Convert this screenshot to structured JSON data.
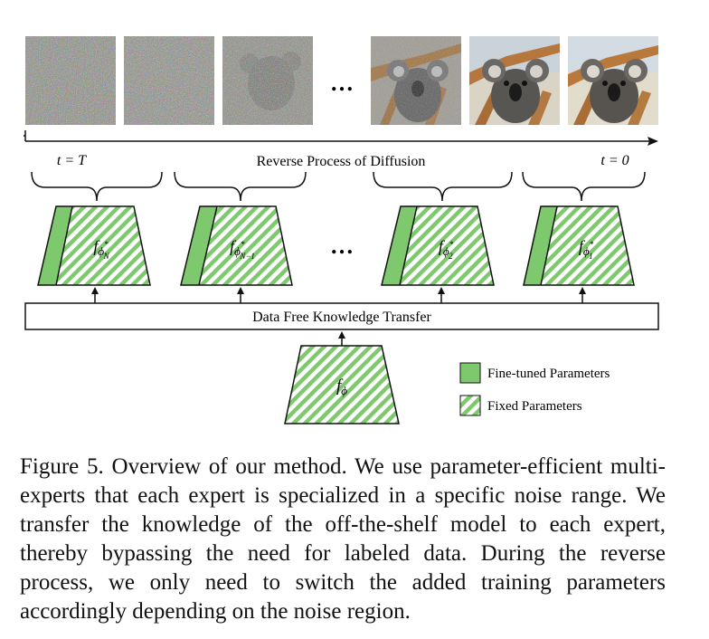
{
  "timeline": {
    "start_label": "t = T",
    "end_label": "t = 0",
    "title": "Reverse Process of Diffusion"
  },
  "ellipsis": "…",
  "images": [
    {
      "stage": "pure-noise"
    },
    {
      "stage": "noise"
    },
    {
      "stage": "noisy-koala"
    },
    {
      "stage": "less-noisy-koala"
    },
    {
      "stage": "nearly-clean-koala"
    },
    {
      "stage": "clean-koala"
    }
  ],
  "experts": [
    {
      "label_main": "f",
      "label_sub": "ϕ",
      "label_sup": "*",
      "label_subsub": "N"
    },
    {
      "label_main": "f",
      "label_sub": "ϕ",
      "label_sup": "*",
      "label_subsub": "N−1"
    },
    {
      "label_main": "f",
      "label_sub": "ϕ",
      "label_sup": "*",
      "label_subsub": "2"
    },
    {
      "label_main": "f",
      "label_sub": "ϕ",
      "label_sup": "*",
      "label_subsub": "1"
    }
  ],
  "transfer_box": {
    "label": "Data Free Knowledge Transfer"
  },
  "base_model": {
    "label_main": "f",
    "label_sub": "ϕ"
  },
  "legend": {
    "fine_tuned": "Fine-tuned Parameters",
    "fixed": "Fixed Parameters"
  },
  "colors": {
    "fine_tuned_green": "#7ec96e",
    "hatch_green": "#7ec96e",
    "stroke": "#111111"
  },
  "caption": "Figure 5.  Overview of our method.  We use parameter-efficient multi-experts that each expert is specialized in a specific noise range.  We transfer the knowledge of the off-the-shelf model to each expert, thereby bypassing the need for labeled data.  During the reverse process, we only need to switch the added training parameters accordingly depending on the noise region."
}
